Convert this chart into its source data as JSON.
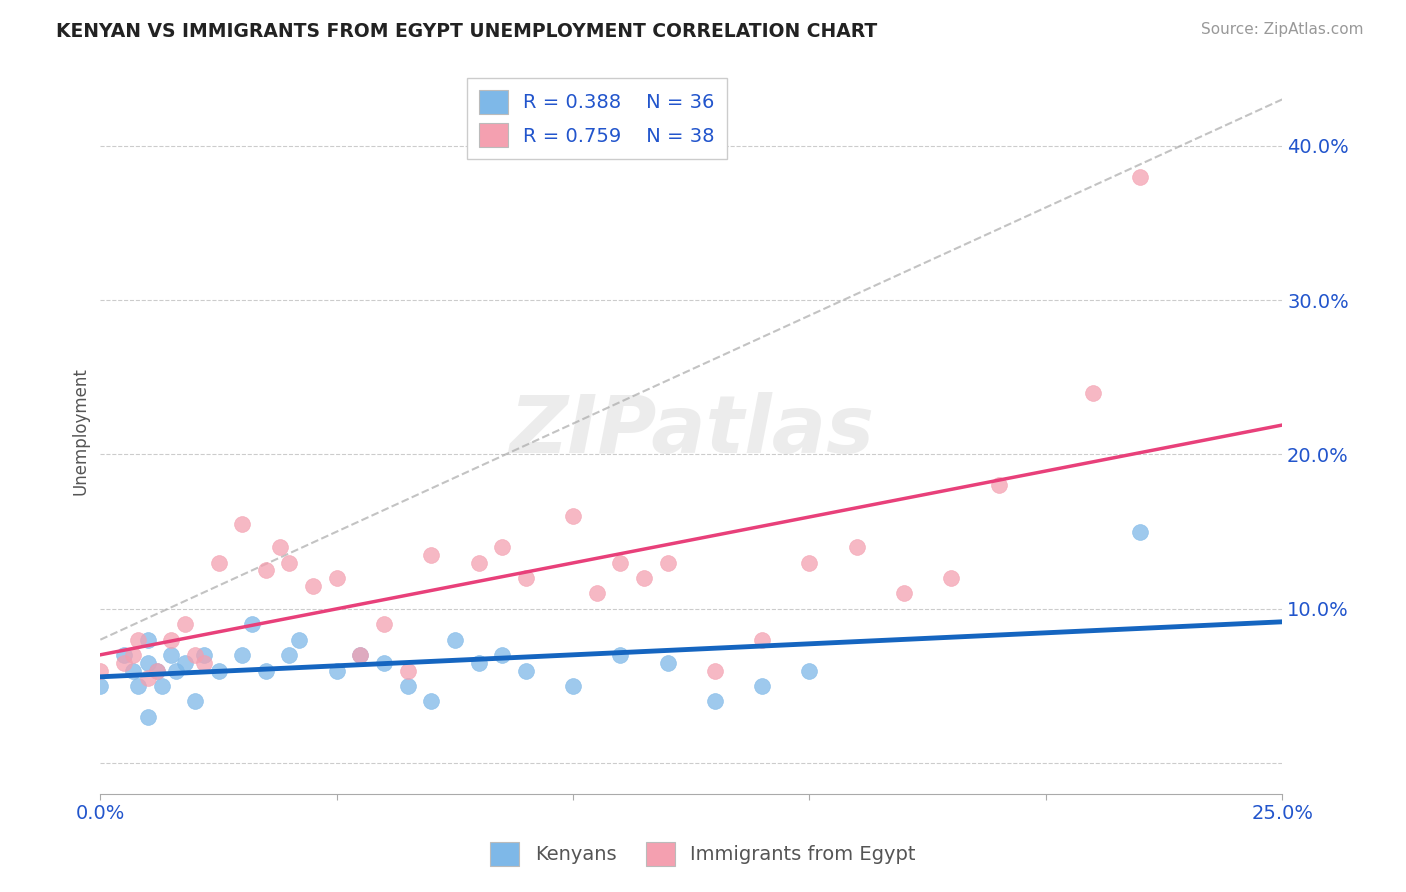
{
  "title": "KENYAN VS IMMIGRANTS FROM EGYPT UNEMPLOYMENT CORRELATION CHART",
  "source": "Source: ZipAtlas.com",
  "ylabel": "Unemployment",
  "xlim": [
    0.0,
    0.25
  ],
  "ylim": [
    -0.02,
    0.45
  ],
  "xticks": [
    0.0,
    0.05,
    0.1,
    0.15,
    0.2,
    0.25
  ],
  "xtick_labels": [
    "0.0%",
    "",
    "",
    "",
    "",
    "25.0%"
  ],
  "yticks_right": [
    0.1,
    0.2,
    0.3,
    0.4
  ],
  "ytick_labels_right": [
    "10.0%",
    "20.0%",
    "30.0%",
    "40.0%"
  ],
  "grid_yticks": [
    0.0,
    0.1,
    0.2,
    0.3,
    0.4
  ],
  "kenyan_color": "#7EB8E8",
  "egypt_color": "#F4A0B0",
  "kenyan_line_color": "#1565C0",
  "egypt_line_color": "#E8407A",
  "legend_R_kenyan": "R = 0.388",
  "legend_N_kenyan": "N = 36",
  "legend_R_egypt": "R = 0.759",
  "legend_N_egypt": "N = 38",
  "watermark": "ZIPatlas",
  "kenyan_scatter_x": [
    0.0,
    0.005,
    0.007,
    0.008,
    0.01,
    0.01,
    0.012,
    0.013,
    0.015,
    0.016,
    0.018,
    0.02,
    0.022,
    0.025,
    0.03,
    0.032,
    0.035,
    0.04,
    0.042,
    0.05,
    0.055,
    0.06,
    0.065,
    0.07,
    0.075,
    0.08,
    0.085,
    0.09,
    0.1,
    0.11,
    0.12,
    0.13,
    0.14,
    0.15,
    0.22,
    0.01
  ],
  "kenyan_scatter_y": [
    0.05,
    0.07,
    0.06,
    0.05,
    0.065,
    0.08,
    0.06,
    0.05,
    0.07,
    0.06,
    0.065,
    0.04,
    0.07,
    0.06,
    0.07,
    0.09,
    0.06,
    0.07,
    0.08,
    0.06,
    0.07,
    0.065,
    0.05,
    0.04,
    0.08,
    0.065,
    0.07,
    0.06,
    0.05,
    0.07,
    0.065,
    0.04,
    0.05,
    0.06,
    0.15,
    0.03
  ],
  "egypt_scatter_x": [
    0.0,
    0.005,
    0.007,
    0.008,
    0.01,
    0.012,
    0.015,
    0.018,
    0.02,
    0.022,
    0.025,
    0.03,
    0.035,
    0.038,
    0.04,
    0.045,
    0.05,
    0.055,
    0.06,
    0.065,
    0.07,
    0.08,
    0.085,
    0.09,
    0.1,
    0.105,
    0.11,
    0.115,
    0.12,
    0.13,
    0.14,
    0.15,
    0.16,
    0.17,
    0.18,
    0.19,
    0.22,
    0.21
  ],
  "egypt_scatter_y": [
    0.06,
    0.065,
    0.07,
    0.08,
    0.055,
    0.06,
    0.08,
    0.09,
    0.07,
    0.065,
    0.13,
    0.155,
    0.125,
    0.14,
    0.13,
    0.115,
    0.12,
    0.07,
    0.09,
    0.06,
    0.135,
    0.13,
    0.14,
    0.12,
    0.16,
    0.11,
    0.13,
    0.12,
    0.13,
    0.06,
    0.08,
    0.13,
    0.14,
    0.11,
    0.12,
    0.18,
    0.38,
    0.24
  ]
}
